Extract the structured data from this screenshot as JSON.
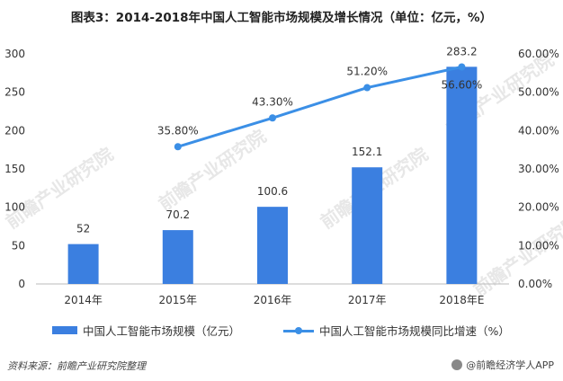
{
  "title": "图表3：2014-2018年中国人工智能市场规模及增长情况（单位：亿元，%）",
  "source": "资料来源：前瞻产业研究院整理",
  "brand": "@前瞻经济学人APP",
  "watermark": "前瞻产业研究院",
  "colors": {
    "bar": "#3b7fe0",
    "line": "#3b8fe6",
    "axis": "#bbbbbb",
    "text": "#333333"
  },
  "chart_data": {
    "type": "bar",
    "title": "图表3：2014-2018年中国人工智能市场规模及增长情况（单位：亿元，%）",
    "categories": [
      "2014年",
      "2015年",
      "2016年",
      "2017年",
      "2018年E"
    ],
    "series": [
      {
        "name": "中国人工智能市场规模（亿元）",
        "type": "bar",
        "axis": "left",
        "values": [
          52,
          70.2,
          100.6,
          152.1,
          283.2
        ],
        "labels": [
          "52",
          "70.2",
          "100.6",
          "152.1",
          "283.2"
        ]
      },
      {
        "name": "中国人工智能市场规模同比增速（%）",
        "type": "line",
        "axis": "right",
        "values": [
          null,
          35.8,
          43.3,
          51.2,
          56.6
        ],
        "labels": [
          "",
          "35.80%",
          "43.30%",
          "51.20%",
          "56.60%"
        ]
      }
    ],
    "y_left": {
      "min": 0,
      "max": 300,
      "ticks": [
        "0",
        "50",
        "100",
        "150",
        "200",
        "250",
        "300"
      ]
    },
    "y_right": {
      "min": 0,
      "max": 60,
      "ticks": [
        "0.00%",
        "10.00%",
        "20.00%",
        "30.00%",
        "40.00%",
        "50.00%",
        "60.00%"
      ]
    },
    "legend": "bottom",
    "grid": false
  }
}
